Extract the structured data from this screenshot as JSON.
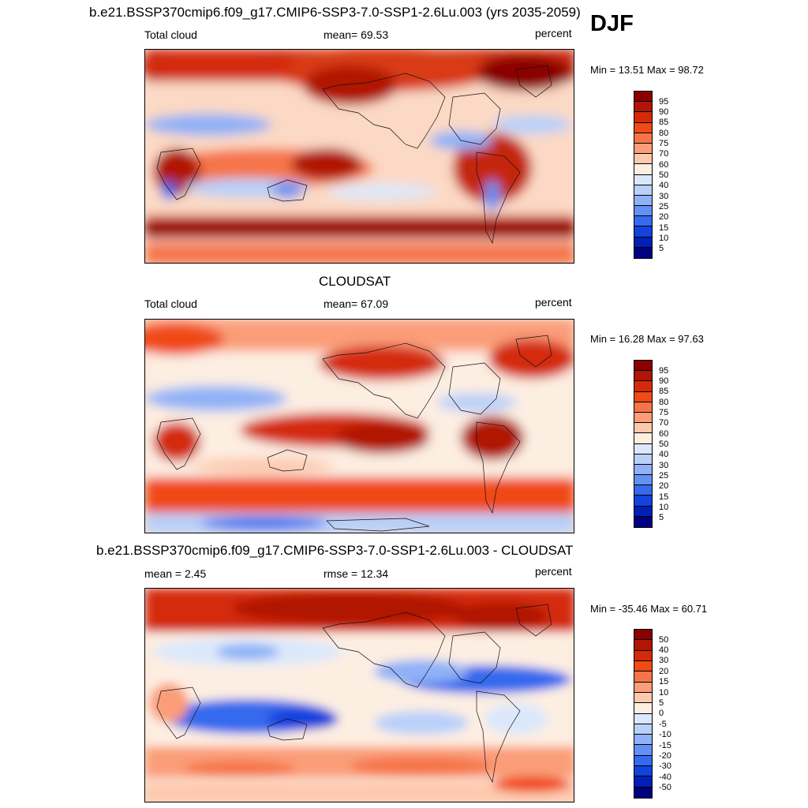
{
  "season_label": "DJF",
  "panels": [
    {
      "title": "b.e21.BSSP370cmip6.f09_g17.CMIP6-SSP3-7.0-SSP1-2.6Lu.003 (yrs 2035-2059)",
      "left_label": "Total cloud",
      "center_label": "mean=  69.53",
      "right_label": "percent",
      "minmax": "Min =  13.51 Max =  98.72",
      "colorbar_labels": [
        "95",
        "90",
        "85",
        "80",
        "75",
        "70",
        "60",
        "50",
        "40",
        "30",
        "25",
        "20",
        "15",
        "10",
        "5"
      ],
      "colors": [
        "#8b0000",
        "#b01505",
        "#d42a0a",
        "#f04a16",
        "#f5754a",
        "#fa9d78",
        "#fdc9ad",
        "#fdeee2",
        "#dbe8fb",
        "#b9d0f9",
        "#8fb1f7",
        "#6390f4",
        "#3569ee",
        "#1342dd",
        "#0020b8",
        "#000080"
      ]
    },
    {
      "title": "CLOUDSAT",
      "left_label": "Total cloud",
      "center_label": "mean=  67.09",
      "right_label": "percent",
      "minmax": "Min =  16.28 Max =  97.63",
      "colorbar_labels": [
        "95",
        "90",
        "85",
        "80",
        "75",
        "70",
        "60",
        "50",
        "40",
        "30",
        "25",
        "20",
        "15",
        "10",
        "5"
      ],
      "colors": [
        "#8b0000",
        "#b01505",
        "#d42a0a",
        "#f04a16",
        "#f5754a",
        "#fa9d78",
        "#fdc9ad",
        "#fdeee2",
        "#dbe8fb",
        "#b9d0f9",
        "#8fb1f7",
        "#6390f4",
        "#3569ee",
        "#1342dd",
        "#0020b8",
        "#000080"
      ]
    },
    {
      "title": "b.e21.BSSP370cmip6.f09_g17.CMIP6-SSP3-7.0-SSP1-2.6Lu.003 - CLOUDSAT",
      "left_label": "mean =   2.45",
      "center_label": "rmse =  12.34",
      "right_label": "percent",
      "minmax": "Min = -35.46 Max =  60.71",
      "colorbar_labels": [
        "50",
        "40",
        "30",
        "20",
        "15",
        "10",
        "5",
        "0",
        "-5",
        "-10",
        "-15",
        "-20",
        "-30",
        "-40",
        "-50"
      ],
      "colors": [
        "#8b0000",
        "#b01505",
        "#d42a0a",
        "#f04a16",
        "#f5754a",
        "#fa9d78",
        "#fdc9ad",
        "#fdeee2",
        "#dbe8fb",
        "#b9d0f9",
        "#8fb1f7",
        "#6390f4",
        "#3569ee",
        "#1342dd",
        "#0020b8",
        "#000080"
      ]
    }
  ]
}
